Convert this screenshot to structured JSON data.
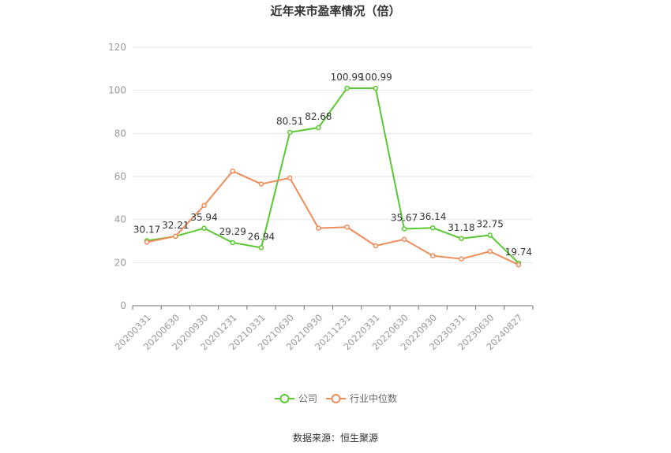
{
  "chart_data": {
    "type": "line",
    "title": "近年来市盈率情况（倍）",
    "categories": [
      "20200331",
      "20200630",
      "20200930",
      "20201231",
      "20210331",
      "20210630",
      "20210930",
      "20211231",
      "20220331",
      "20220630",
      "20220930",
      "20230331",
      "20230630",
      "20240827"
    ],
    "ylim": [
      0,
      120
    ],
    "yticks": [
      0,
      20,
      40,
      60,
      80,
      100,
      120
    ],
    "grid": true,
    "legend_position": "bottom",
    "series": [
      {
        "name": "公司",
        "color": "#5ac832",
        "values": [
          30.17,
          32.21,
          35.94,
          29.29,
          26.94,
          80.51,
          82.68,
          100.99,
          100.99,
          35.67,
          36.14,
          31.18,
          32.75,
          19.74
        ],
        "labels": [
          "30.17",
          "32.21",
          "35.94",
          "29.29",
          "26.94",
          "80.51",
          "82.68",
          "100.99",
          "100.99",
          "35.67",
          "36.14",
          "31.18",
          "32.75",
          "19.74"
        ]
      },
      {
        "name": "行业中位数",
        "color": "#f08c5a",
        "values": [
          29.5,
          32.3,
          46.5,
          62.5,
          56.5,
          59.3,
          36.0,
          36.5,
          27.8,
          30.8,
          23.2,
          21.7,
          25.2,
          19.0
        ]
      }
    ]
  },
  "source": "数据来源：恒生聚源"
}
